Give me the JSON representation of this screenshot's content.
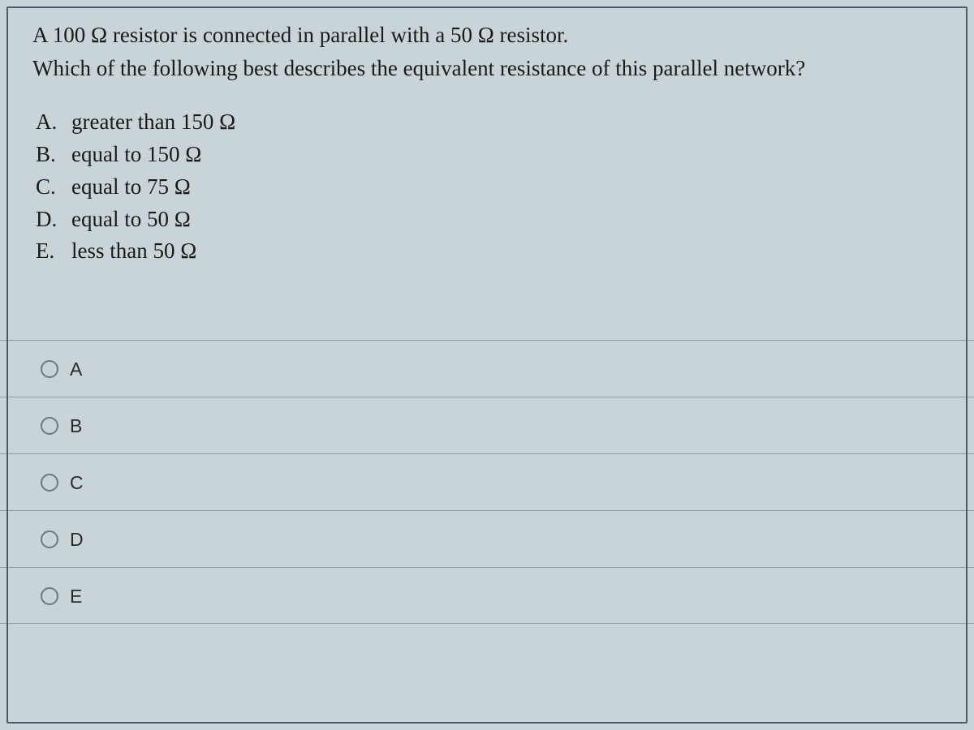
{
  "question": {
    "line1": "A 100 Ω resistor is connected in parallel with a 50 Ω resistor.",
    "line2": "Which of the following best describes the equivalent resistance of this parallel network?"
  },
  "answers": [
    {
      "letter": "A.",
      "text": "greater than 150 Ω"
    },
    {
      "letter": "B.",
      "text": "equal to 150 Ω"
    },
    {
      "letter": "C.",
      "text": "equal to 75 Ω"
    },
    {
      "letter": "D.",
      "text": "equal to 50 Ω"
    },
    {
      "letter": "E.",
      "text": "less than 50 Ω"
    }
  ],
  "radio_options": [
    {
      "label": "A"
    },
    {
      "label": "B"
    },
    {
      "label": "C"
    },
    {
      "label": "D"
    },
    {
      "label": "E"
    }
  ],
  "colors": {
    "background": "#c8d4d8",
    "text": "#1a1a1a",
    "border": "#8a9aa5",
    "radio_border": "#6a7a85",
    "screen_border": "#4a5a6a"
  }
}
